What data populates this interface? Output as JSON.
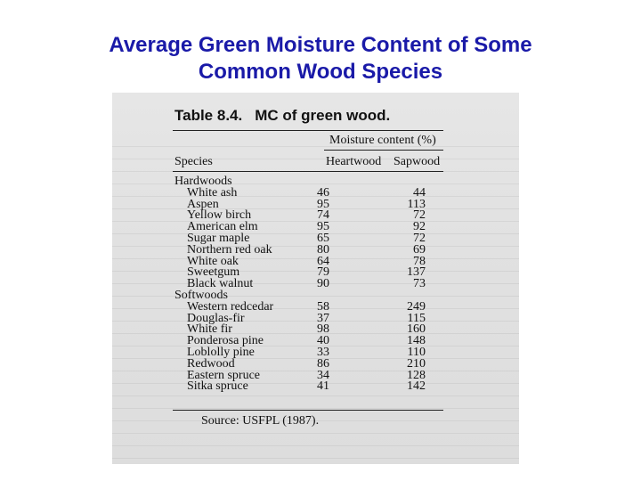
{
  "title": {
    "line1": "Average Green Moisture Content of Some",
    "line2": "Common Wood Species"
  },
  "table": {
    "number": "Table 8.4.",
    "caption": "MC of green wood.",
    "group_header": "Moisture content (%)",
    "col_species": "Species",
    "col_heartwood": "Heartwood",
    "col_sapwood": "Sapwood",
    "hardwoods_label": "Hardwoods",
    "hardwoods": [
      {
        "species": "White ash",
        "heartwood": "46",
        "sapwood": "44"
      },
      {
        "species": "Aspen",
        "heartwood": "95",
        "sapwood": "113"
      },
      {
        "species": "Yellow birch",
        "heartwood": "74",
        "sapwood": "72"
      },
      {
        "species": "American elm",
        "heartwood": "95",
        "sapwood": "92"
      },
      {
        "species": "Sugar maple",
        "heartwood": "65",
        "sapwood": "72"
      },
      {
        "species": "Northern red oak",
        "heartwood": "80",
        "sapwood": "69"
      },
      {
        "species": "White oak",
        "heartwood": "64",
        "sapwood": "78"
      },
      {
        "species": "Sweetgum",
        "heartwood": "79",
        "sapwood": "137"
      },
      {
        "species": "Black walnut",
        "heartwood": "90",
        "sapwood": "73"
      }
    ],
    "softwoods_label": "Softwoods",
    "softwoods": [
      {
        "species": "Western redcedar",
        "heartwood": "58",
        "sapwood": "249"
      },
      {
        "species": "Douglas-fir",
        "heartwood": "37",
        "sapwood": "115"
      },
      {
        "species": "White fir",
        "heartwood": "98",
        "sapwood": "160"
      },
      {
        "species": "Ponderosa pine",
        "heartwood": "40",
        "sapwood": "148"
      },
      {
        "species": "Loblolly pine",
        "heartwood": "33",
        "sapwood": "110"
      },
      {
        "species": "Redwood",
        "heartwood": "86",
        "sapwood": "210"
      },
      {
        "species": "Eastern spruce",
        "heartwood": "34",
        "sapwood": "128"
      },
      {
        "species": "Sitka spruce",
        "heartwood": "41",
        "sapwood": "142"
      }
    ],
    "source": "Source: USFPL (1987)."
  }
}
